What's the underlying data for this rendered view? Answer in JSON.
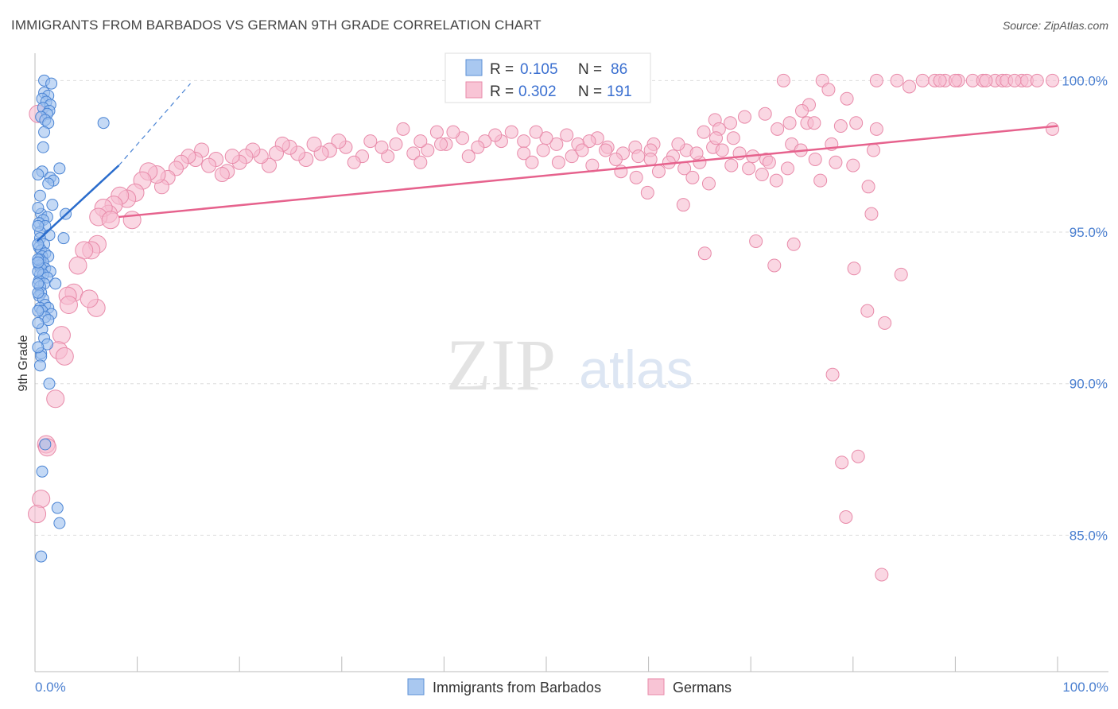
{
  "title": "IMMIGRANTS FROM BARBADOS VS GERMAN 9TH GRADE CORRELATION CHART",
  "source": "Source: ZipAtlas.com",
  "watermark": {
    "zip": "ZIP",
    "atlas": "atlas"
  },
  "legend": {
    "r_label": "R =",
    "n_label": "N =",
    "rows": [
      {
        "r": "0.105",
        "n": "86"
      },
      {
        "r": "0.302",
        "n": "191"
      }
    ]
  },
  "colors": {
    "blue_fill": "#9dbfee",
    "blue_stroke": "#4a84d4",
    "blue_line": "#2a6ccc",
    "pink_fill": "#f6bdd0",
    "pink_stroke": "#e88aa9",
    "pink_line": "#e6628d",
    "axis_text": "#4a7fd0",
    "grid": "#dddddd"
  },
  "chart_data": {
    "type": "scatter",
    "title": "IMMIGRANTS FROM BARBADOS VS GERMAN 9TH GRADE CORRELATION CHART",
    "xlabel": "",
    "ylabel": "9th Grade",
    "xlim": [
      0,
      100
    ],
    "ylim": [
      80.5,
      100.9
    ],
    "x_tick_labels": {
      "left": "0.0%",
      "right": "100.0%"
    },
    "y_ticks": [
      {
        "value": 100,
        "label": "100.0%"
      },
      {
        "value": 95,
        "label": "95.0%"
      },
      {
        "value": 90,
        "label": "90.0%"
      },
      {
        "value": 85,
        "label": "85.0%"
      }
    ],
    "grid": true,
    "legend_position": "top-center",
    "series": [
      {
        "name": "Immigrants from Barbados",
        "R": 0.105,
        "N": 86,
        "trend": {
          "x0": 0.2,
          "y0": 94.7,
          "x1": 8.2,
          "y1": 97.2,
          "dash_to_x": 15.2,
          "dash_to_y": 99.9
        },
        "points": [
          [
            0.9,
            100.0
          ],
          [
            1.6,
            99.9
          ],
          [
            0.9,
            99.6
          ],
          [
            1.3,
            99.5
          ],
          [
            0.7,
            99.4
          ],
          [
            1.1,
            99.3
          ],
          [
            1.5,
            99.2
          ],
          [
            0.8,
            99.1
          ],
          [
            1.4,
            99.0
          ],
          [
            1.2,
            98.9
          ],
          [
            0.6,
            98.8
          ],
          [
            1.0,
            98.7
          ],
          [
            1.3,
            98.6
          ],
          [
            0.9,
            98.3
          ],
          [
            6.7,
            98.6
          ],
          [
            0.8,
            97.8
          ],
          [
            0.7,
            97.0
          ],
          [
            2.4,
            97.1
          ],
          [
            1.5,
            96.8
          ],
          [
            1.8,
            96.7
          ],
          [
            1.3,
            96.6
          ],
          [
            0.5,
            96.2
          ],
          [
            1.7,
            95.9
          ],
          [
            0.6,
            95.6
          ],
          [
            1.2,
            95.5
          ],
          [
            0.8,
            95.4
          ],
          [
            3.0,
            95.6
          ],
          [
            0.4,
            95.3
          ],
          [
            1.0,
            95.2
          ],
          [
            0.5,
            95.0
          ],
          [
            1.4,
            94.9
          ],
          [
            2.8,
            94.8
          ],
          [
            0.5,
            94.8
          ],
          [
            0.9,
            94.6
          ],
          [
            0.4,
            94.5
          ],
          [
            0.6,
            94.4
          ],
          [
            1.0,
            94.3
          ],
          [
            0.7,
            94.2
          ],
          [
            1.3,
            94.2
          ],
          [
            0.5,
            94.1
          ],
          [
            0.8,
            94.0
          ],
          [
            0.4,
            93.9
          ],
          [
            1.0,
            93.8
          ],
          [
            0.6,
            93.8
          ],
          [
            1.5,
            93.7
          ],
          [
            0.5,
            93.6
          ],
          [
            0.8,
            93.6
          ],
          [
            1.2,
            93.5
          ],
          [
            0.4,
            93.4
          ],
          [
            0.9,
            93.3
          ],
          [
            2.0,
            93.3
          ],
          [
            0.5,
            93.2
          ],
          [
            0.6,
            93.0
          ],
          [
            0.4,
            92.9
          ],
          [
            0.8,
            92.8
          ],
          [
            1.0,
            92.6
          ],
          [
            0.5,
            92.5
          ],
          [
            1.3,
            92.5
          ],
          [
            0.7,
            92.4
          ],
          [
            1.6,
            92.3
          ],
          [
            1.0,
            92.2
          ],
          [
            1.3,
            92.1
          ],
          [
            0.7,
            91.8
          ],
          [
            0.9,
            91.5
          ],
          [
            1.2,
            91.3
          ],
          [
            0.6,
            91.0
          ],
          [
            0.6,
            90.9
          ],
          [
            0.5,
            90.6
          ],
          [
            1.4,
            90.0
          ],
          [
            1.0,
            88.0
          ],
          [
            0.7,
            87.1
          ],
          [
            2.2,
            85.9
          ],
          [
            2.4,
            85.4
          ],
          [
            0.6,
            84.3
          ],
          [
            0.3,
            94.1
          ],
          [
            0.3,
            93.7
          ],
          [
            0.3,
            95.2
          ],
          [
            0.3,
            94.6
          ],
          [
            0.3,
            93.0
          ],
          [
            0.3,
            92.4
          ],
          [
            0.3,
            96.9
          ],
          [
            0.3,
            91.2
          ],
          [
            0.3,
            95.8
          ],
          [
            0.3,
            94.0
          ],
          [
            0.3,
            93.3
          ],
          [
            0.3,
            92.0
          ]
        ]
      },
      {
        "name": "Germans",
        "R": 0.302,
        "N": 191,
        "trend": {
          "x0": 8.2,
          "y0": 95.5,
          "x1": 100,
          "y1": 98.5
        },
        "points": [
          [
            73.2,
            100.0
          ],
          [
            77.0,
            100.0
          ],
          [
            77.6,
            99.7
          ],
          [
            82.3,
            100.0
          ],
          [
            84.3,
            100.0
          ],
          [
            85.5,
            99.8
          ],
          [
            86.8,
            100.0
          ],
          [
            88.0,
            100.0
          ],
          [
            89.0,
            100.0
          ],
          [
            90.3,
            100.0
          ],
          [
            91.7,
            100.0
          ],
          [
            92.7,
            100.0
          ],
          [
            93.9,
            100.0
          ],
          [
            94.6,
            100.0
          ],
          [
            95.0,
            100.0
          ],
          [
            96.5,
            100.0
          ],
          [
            97.0,
            100.0
          ],
          [
            88.5,
            100.0
          ],
          [
            90.0,
            100.0
          ],
          [
            93.0,
            100.0
          ],
          [
            95.8,
            100.0
          ],
          [
            98.0,
            100.0
          ],
          [
            99.5,
            100.0
          ],
          [
            75.7,
            99.2
          ],
          [
            71.4,
            98.9
          ],
          [
            69.4,
            98.8
          ],
          [
            68.0,
            98.6
          ],
          [
            66.5,
            98.7
          ],
          [
            66.9,
            98.4
          ],
          [
            65.4,
            98.3
          ],
          [
            73.8,
            98.6
          ],
          [
            75.5,
            98.6
          ],
          [
            80.3,
            98.6
          ],
          [
            82.3,
            98.4
          ],
          [
            99.5,
            98.4
          ],
          [
            74.0,
            97.9
          ],
          [
            68.3,
            98.1
          ],
          [
            66.3,
            97.8
          ],
          [
            63.7,
            97.7
          ],
          [
            62.4,
            97.5
          ],
          [
            62.9,
            97.9
          ],
          [
            60.5,
            97.9
          ],
          [
            60.2,
            97.7
          ],
          [
            58.7,
            97.8
          ],
          [
            57.5,
            97.6
          ],
          [
            56.0,
            97.8
          ],
          [
            55.0,
            98.1
          ],
          [
            54.2,
            98.0
          ],
          [
            53.1,
            97.9
          ],
          [
            52.0,
            98.2
          ],
          [
            51.0,
            97.9
          ],
          [
            50.0,
            98.1
          ],
          [
            49.0,
            98.3
          ],
          [
            47.8,
            98.0
          ],
          [
            46.6,
            98.3
          ],
          [
            45.6,
            98.0
          ],
          [
            45.0,
            98.2
          ],
          [
            44.0,
            98.0
          ],
          [
            43.3,
            97.8
          ],
          [
            42.4,
            97.5
          ],
          [
            41.8,
            98.1
          ],
          [
            40.9,
            98.3
          ],
          [
            40.2,
            97.9
          ],
          [
            39.3,
            98.3
          ],
          [
            38.4,
            97.7
          ],
          [
            37.7,
            98.0
          ],
          [
            37.0,
            97.6
          ],
          [
            36.0,
            98.4
          ],
          [
            35.3,
            97.9
          ],
          [
            34.5,
            97.5
          ],
          [
            33.9,
            97.8
          ],
          [
            32.8,
            98.0
          ],
          [
            32.0,
            97.5
          ],
          [
            31.2,
            97.3
          ],
          [
            30.4,
            97.8
          ],
          [
            29.7,
            98.0
          ],
          [
            28.8,
            97.7
          ],
          [
            28.0,
            97.6
          ],
          [
            27.3,
            97.9
          ],
          [
            26.5,
            97.4
          ],
          [
            25.7,
            97.6
          ],
          [
            24.9,
            97.8
          ],
          [
            24.2,
            97.9
          ],
          [
            23.6,
            97.6
          ],
          [
            22.9,
            97.2
          ],
          [
            22.1,
            97.5
          ],
          [
            21.3,
            97.7
          ],
          [
            20.6,
            97.5
          ],
          [
            20.0,
            97.3
          ],
          [
            19.3,
            97.5
          ],
          [
            18.8,
            97.0
          ],
          [
            18.3,
            96.9
          ],
          [
            17.7,
            97.4
          ],
          [
            17.0,
            97.2
          ],
          [
            16.3,
            97.7
          ],
          [
            15.7,
            97.4
          ],
          [
            15.0,
            97.5
          ],
          [
            14.3,
            97.3
          ],
          [
            13.8,
            97.1
          ],
          [
            13.0,
            96.8
          ],
          [
            12.4,
            96.5
          ],
          [
            11.9,
            96.9
          ],
          [
            11.1,
            97.0
          ],
          [
            10.5,
            96.7
          ],
          [
            9.8,
            96.3
          ],
          [
            9.0,
            96.1
          ],
          [
            8.3,
            96.2
          ],
          [
            7.7,
            95.9
          ],
          [
            7.2,
            95.6
          ],
          [
            6.7,
            95.8
          ],
          [
            6.2,
            95.5
          ],
          [
            7.4,
            95.4
          ],
          [
            6.1,
            94.6
          ],
          [
            5.5,
            94.4
          ],
          [
            4.8,
            94.4
          ],
          [
            4.2,
            93.9
          ],
          [
            3.8,
            93.0
          ],
          [
            3.2,
            92.9
          ],
          [
            3.3,
            92.6
          ],
          [
            2.6,
            91.6
          ],
          [
            2.3,
            91.1
          ],
          [
            2.0,
            89.5
          ],
          [
            1.1,
            88.0
          ],
          [
            0.6,
            86.2
          ],
          [
            0.2,
            85.7
          ],
          [
            37.7,
            97.3
          ],
          [
            39.7,
            97.9
          ],
          [
            47.8,
            97.6
          ],
          [
            48.6,
            97.3
          ],
          [
            49.7,
            97.7
          ],
          [
            51.2,
            97.3
          ],
          [
            52.5,
            97.5
          ],
          [
            53.5,
            97.7
          ],
          [
            54.5,
            97.2
          ],
          [
            55.8,
            97.7
          ],
          [
            56.8,
            97.4
          ],
          [
            57.3,
            97.0
          ],
          [
            59.0,
            97.5
          ],
          [
            60.2,
            97.4
          ],
          [
            61.0,
            97.0
          ],
          [
            62.0,
            97.3
          ],
          [
            63.5,
            97.1
          ],
          [
            64.3,
            96.8
          ],
          [
            65.0,
            97.3
          ],
          [
            65.9,
            96.6
          ],
          [
            67.2,
            97.7
          ],
          [
            68.9,
            97.6
          ],
          [
            69.8,
            97.1
          ],
          [
            71.1,
            96.9
          ],
          [
            71.5,
            97.4
          ],
          [
            72.5,
            96.7
          ],
          [
            73.6,
            97.1
          ],
          [
            76.3,
            97.4
          ],
          [
            76.8,
            96.7
          ],
          [
            78.3,
            97.3
          ],
          [
            80.0,
            97.2
          ],
          [
            81.5,
            96.5
          ],
          [
            63.4,
            95.9
          ],
          [
            65.5,
            94.3
          ],
          [
            70.5,
            94.7
          ],
          [
            72.3,
            93.9
          ],
          [
            74.2,
            94.6
          ],
          [
            76.2,
            98.6
          ],
          [
            77.9,
            97.9
          ],
          [
            78.8,
            98.5
          ],
          [
            79.4,
            99.4
          ],
          [
            81.8,
            95.6
          ],
          [
            80.1,
            93.8
          ],
          [
            81.4,
            92.4
          ],
          [
            83.1,
            92.0
          ],
          [
            84.7,
            93.6
          ],
          [
            78.0,
            90.3
          ],
          [
            78.9,
            87.4
          ],
          [
            80.5,
            87.6
          ],
          [
            79.3,
            85.6
          ],
          [
            82.8,
            83.7
          ],
          [
            58.8,
            96.8
          ],
          [
            59.9,
            96.3
          ],
          [
            64.7,
            97.6
          ],
          [
            66.6,
            98.1
          ],
          [
            68.1,
            97.2
          ],
          [
            70.2,
            97.5
          ],
          [
            71.8,
            97.3
          ],
          [
            72.6,
            98.4
          ],
          [
            74.9,
            97.7
          ],
          [
            82.0,
            97.7
          ],
          [
            75.0,
            99.0
          ],
          [
            9.5,
            95.4
          ],
          [
            6.0,
            92.5
          ],
          [
            2.9,
            90.9
          ],
          [
            1.2,
            87.9
          ],
          [
            5.3,
            92.8
          ],
          [
            0.3,
            98.9
          ]
        ]
      }
    ]
  },
  "bottom_legend": [
    {
      "label": "Immigrants from Barbados"
    },
    {
      "label": "Germans"
    }
  ]
}
